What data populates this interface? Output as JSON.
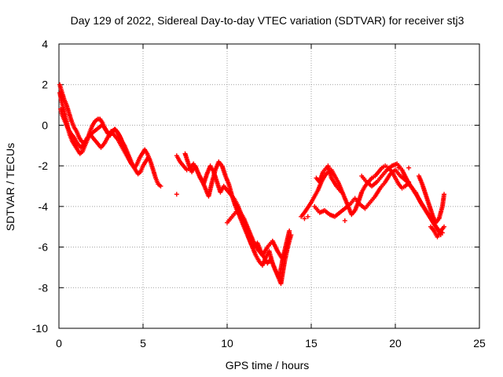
{
  "chart_data": {
    "type": "scatter",
    "title": "Day 129 of 2022, Sidereal Day-to-day VTEC variation (SDTVAR) for receiver stj3",
    "xlabel": "GPS time / hours",
    "ylabel": "SDTVAR / TECUs",
    "xlim": [
      0,
      25
    ],
    "ylim": [
      -10,
      4
    ],
    "xticks": [
      0,
      5,
      10,
      15,
      20,
      25
    ],
    "yticks": [
      4,
      2,
      0,
      -2,
      -4,
      -6,
      -8,
      -10
    ],
    "xtick_labels": [
      "0",
      "5",
      "10",
      "15",
      "20",
      "25"
    ],
    "ytick_labels": [
      "4",
      "2",
      "0",
      "-2",
      "-4",
      "-6",
      "-8",
      "-10"
    ],
    "grid": true,
    "marker": "+",
    "color": "#ff0000",
    "series": [
      {
        "name": "SDTVAR",
        "segments": [
          {
            "x": [
              0.05,
              0.15,
              0.25,
              0.35,
              0.45,
              0.55,
              0.65,
              0.8,
              0.95,
              1.1,
              1.25,
              1.4,
              1.55,
              1.7,
              1.85,
              2.0,
              2.15,
              2.3,
              2.45,
              2.6,
              2.75,
              2.9,
              3.05,
              3.2,
              3.35,
              3.5,
              3.65,
              3.8,
              3.95,
              4.1,
              4.25,
              4.4,
              4.55,
              4.7,
              4.85,
              5.0,
              5.15,
              5.3,
              5.45,
              5.6,
              5.75,
              5.9,
              6.05
            ],
            "y": [
              1.6,
              1.2,
              0.9,
              0.5,
              0.2,
              -0.2,
              -0.5,
              -0.8,
              -1.0,
              -1.2,
              -1.4,
              -1.3,
              -1.0,
              -0.7,
              -0.3,
              0.0,
              0.2,
              0.3,
              0.3,
              0.1,
              -0.2,
              -0.4,
              -0.5,
              -0.3,
              -0.2,
              -0.4,
              -0.6,
              -0.9,
              -1.2,
              -1.5,
              -1.8,
              -2.0,
              -2.2,
              -2.4,
              -2.3,
              -2.0,
              -1.8,
              -1.6,
              -1.8,
              -2.2,
              -2.6,
              -2.9,
              -3.0
            ]
          },
          {
            "x": [
              0.05,
              0.15,
              0.3,
              0.45,
              0.6,
              0.75,
              0.9,
              1.05,
              1.2,
              1.35,
              1.5,
              1.65,
              1.8,
              1.95,
              2.1,
              2.25,
              2.4,
              2.55,
              2.7,
              2.85,
              3.0,
              3.15,
              3.3,
              3.45,
              3.6,
              3.75,
              3.9,
              4.05,
              4.2,
              4.35,
              4.5,
              4.65,
              4.8,
              4.95,
              5.1,
              5.25,
              5.4
            ],
            "y": [
              2.0,
              1.7,
              1.3,
              1.0,
              0.6,
              0.2,
              -0.1,
              -0.3,
              -0.6,
              -0.8,
              -0.9,
              -0.7,
              -0.5,
              -0.4,
              -0.3,
              -0.2,
              -0.1,
              0.0,
              -0.1,
              -0.3,
              -0.4,
              -0.3,
              -0.2,
              -0.3,
              -0.5,
              -0.8,
              -1.0,
              -1.3,
              -1.6,
              -1.9,
              -2.1,
              -1.9,
              -1.6,
              -1.4,
              -1.2,
              -1.4,
              -1.7
            ]
          },
          {
            "x": [
              0.1,
              0.2,
              0.35,
              0.5,
              0.7,
              0.9,
              1.1,
              1.3,
              1.5,
              1.7,
              1.9,
              2.1,
              2.3,
              2.5,
              2.7,
              2.9,
              3.1,
              3.3,
              3.5,
              3.7,
              3.9,
              4.1,
              4.3
            ],
            "y": [
              0.8,
              0.5,
              0.2,
              -0.1,
              -0.4,
              -0.6,
              -0.9,
              -1.1,
              -0.9,
              -0.6,
              -0.5,
              -0.7,
              -0.9,
              -1.1,
              -0.9,
              -0.6,
              -0.3,
              -0.5,
              -0.7,
              -1.0,
              -1.3,
              -1.6,
              -1.9
            ]
          },
          {
            "x": [
              7.0,
              7.2,
              7.4,
              7.6,
              7.8,
              8.0,
              8.2,
              8.4,
              8.6,
              8.8,
              9.0,
              9.2,
              9.4,
              9.6,
              9.8,
              10.0,
              10.2,
              10.4,
              10.6,
              10.8,
              11.0,
              11.2,
              11.4,
              11.6,
              11.8,
              12.0,
              12.2,
              12.4,
              12.6,
              12.8,
              13.0,
              13.2,
              13.4,
              13.6,
              13.8
            ],
            "y": [
              -1.5,
              -1.8,
              -2.0,
              -2.2,
              -2.1,
              -1.9,
              -2.2,
              -2.6,
              -2.9,
              -2.4,
              -2.0,
              -2.3,
              -2.8,
              -3.3,
              -3.0,
              -3.2,
              -3.4,
              -3.6,
              -3.9,
              -4.3,
              -4.6,
              -5.0,
              -5.4,
              -5.8,
              -6.1,
              -6.3,
              -6.5,
              -6.8,
              -6.6,
              -7.0,
              -7.4,
              -7.8,
              -6.8,
              -6.0,
              -5.4
            ]
          },
          {
            "x": [
              7.5,
              7.7,
              7.9,
              8.1,
              8.3,
              8.5,
              8.7,
              8.9,
              9.1,
              9.3,
              9.5,
              9.7,
              9.9,
              10.1,
              10.3,
              10.5,
              10.7,
              10.9,
              11.1,
              11.3,
              11.5,
              11.7,
              11.9,
              12.1,
              12.3,
              12.5,
              12.7,
              12.9,
              13.1,
              13.3,
              13.5,
              13.7
            ],
            "y": [
              -1.4,
              -1.9,
              -2.3,
              -2.0,
              -2.4,
              -2.7,
              -3.1,
              -3.5,
              -2.8,
              -2.2,
              -1.8,
              -2.0,
              -2.5,
              -2.9,
              -3.5,
              -4.0,
              -4.4,
              -4.8,
              -5.2,
              -5.6,
              -6.0,
              -6.4,
              -6.7,
              -6.9,
              -6.5,
              -6.2,
              -6.8,
              -7.2,
              -7.5,
              -6.6,
              -5.9,
              -5.2
            ]
          },
          {
            "x": [
              10.0,
              10.3,
              10.6,
              10.9,
              11.2,
              11.5,
              11.8,
              12.1,
              12.4,
              12.7,
              13.0,
              13.3,
              13.6
            ],
            "y": [
              -4.8,
              -4.5,
              -4.2,
              -4.6,
              -5.3,
              -6.0,
              -5.8,
              -6.4,
              -6.0,
              -5.7,
              -6.2,
              -6.6,
              -6.0
            ]
          },
          {
            "x": [
              14.4,
              14.6,
              15.0,
              15.2,
              15.4,
              15.6,
              15.8,
              16.0,
              16.2,
              16.4,
              16.6,
              16.8,
              17.0,
              17.2,
              17.4,
              17.6,
              17.8,
              18.0,
              18.2,
              18.4,
              18.6,
              18.8,
              19.0,
              19.2,
              19.4,
              19.6,
              19.8,
              20.0,
              20.2,
              20.4,
              20.6,
              20.8
            ],
            "y": [
              -4.5,
              -4.3,
              -3.8,
              -3.5,
              -3.2,
              -2.8,
              -2.5,
              -2.3,
              -2.2,
              -2.5,
              -2.8,
              -3.2,
              -3.6,
              -4.0,
              -4.4,
              -4.2,
              -3.8,
              -3.3,
              -3.0,
              -2.8,
              -2.6,
              -2.5,
              -2.3,
              -2.1,
              -2.0,
              -2.1,
              -2.3,
              -2.6,
              -2.9,
              -3.1,
              -3.0,
              -2.8
            ]
          },
          {
            "x": [
              15.2,
              15.5,
              15.8,
              16.1,
              16.4,
              16.7,
              17.0,
              17.3,
              17.6,
              17.9,
              18.2,
              18.5,
              18.8,
              19.1,
              19.4,
              19.7,
              20.0,
              20.3,
              20.6,
              20.9,
              21.2,
              21.5,
              21.8,
              22.1,
              22.4,
              22.7
            ],
            "y": [
              -4.0,
              -4.3,
              -4.2,
              -4.4,
              -4.5,
              -4.3,
              -4.1,
              -3.9,
              -3.6,
              -3.9,
              -4.1,
              -3.8,
              -3.5,
              -3.1,
              -2.8,
              -2.4,
              -2.2,
              -2.5,
              -2.7,
              -3.0,
              -3.3,
              -3.8,
              -4.2,
              -4.6,
              -5.0,
              -5.4
            ]
          },
          {
            "x": [
              15.3,
              15.5,
              15.7,
              16.0,
              16.2,
              16.5,
              16.8
            ],
            "y": [
              -2.6,
              -2.8,
              -2.3,
              -2.0,
              -2.6,
              -3.0,
              -3.3
            ]
          },
          {
            "x": [
              18.0,
              18.3,
              18.6,
              18.9,
              19.2,
              19.5,
              19.8,
              20.1,
              20.4,
              20.7,
              21.0,
              21.3,
              21.6,
              21.9,
              22.2,
              22.5,
              22.8
            ],
            "y": [
              -2.5,
              -2.8,
              -3.0,
              -2.8,
              -2.5,
              -2.2,
              -2.0,
              -1.9,
              -2.2,
              -2.7,
              -3.1,
              -3.5,
              -3.9,
              -4.3,
              -4.7,
              -5.1,
              -5.3
            ]
          },
          {
            "x": [
              21.4,
              21.6,
              21.8,
              22.0,
              22.2,
              22.4,
              22.6,
              22.8,
              22.9
            ],
            "y": [
              -2.5,
              -2.9,
              -3.4,
              -3.9,
              -4.4,
              -4.8,
              -4.6,
              -4.0,
              -3.4
            ]
          },
          {
            "x": [
              22.1,
              22.3,
              22.5,
              22.7,
              22.9
            ],
            "y": [
              -5.0,
              -5.2,
              -5.5,
              -5.2,
              -5.0
            ]
          }
        ],
        "points": {
          "x": [
            7.0,
            14.6,
            14.8,
            17.0,
            20.2,
            20.8
          ],
          "y": [
            -3.4,
            -4.6,
            -4.5,
            -4.7,
            -2.1,
            -2.1
          ]
        }
      }
    ]
  }
}
